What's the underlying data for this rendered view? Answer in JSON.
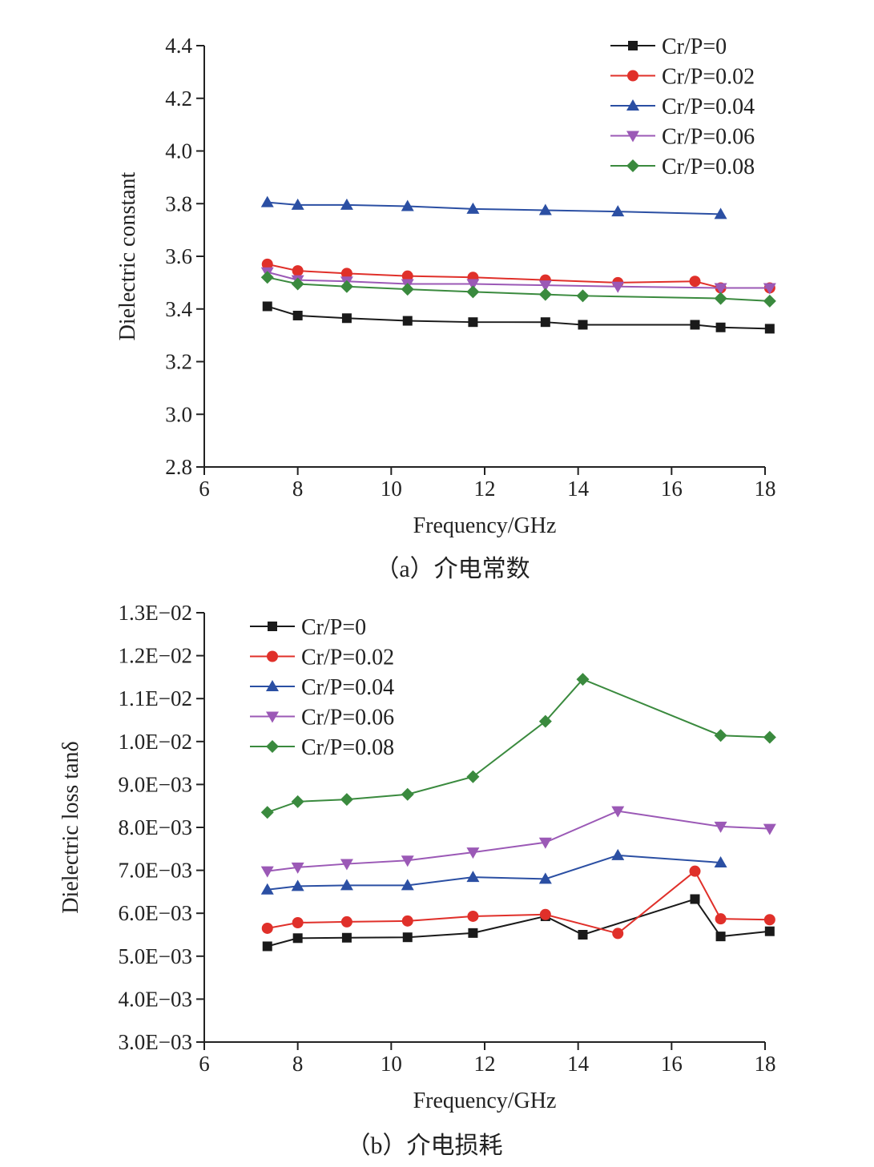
{
  "chart_data": [
    {
      "type": "line",
      "caption": "（a）介电常数",
      "xlabel": "Frequency/GHz",
      "ylabel": "Dielectric constant",
      "xlim": [
        6,
        18
      ],
      "ylim": [
        2.8,
        4.4
      ],
      "xticks": [
        6,
        8,
        10,
        12,
        14,
        16,
        18
      ],
      "yticks": [
        2.8,
        3.0,
        3.2,
        3.4,
        3.6,
        3.8,
        4.0,
        4.2,
        4.4
      ],
      "ytick_labels": [
        "2.8",
        "3.0",
        "3.2",
        "3.4",
        "3.6",
        "3.8",
        "4.0",
        "4.2",
        "4.4"
      ],
      "legend_position": "top-right",
      "grid": false,
      "series": [
        {
          "name": "Cr/P=0",
          "color": "#1a1a1a",
          "marker": "square",
          "x": [
            7.35,
            8.0,
            9.05,
            10.35,
            11.75,
            13.3,
            14.1,
            16.5,
            17.05,
            18.1
          ],
          "y": [
            3.41,
            3.375,
            3.365,
            3.355,
            3.35,
            3.35,
            3.34,
            3.34,
            3.33,
            3.325
          ]
        },
        {
          "name": "Cr/P=0.02",
          "color": "#e0302a",
          "marker": "circle",
          "x": [
            7.35,
            8.0,
            9.05,
            10.35,
            11.75,
            13.3,
            14.85,
            16.5,
            17.05,
            18.1
          ],
          "y": [
            3.57,
            3.545,
            3.535,
            3.525,
            3.52,
            3.51,
            3.5,
            3.505,
            3.48,
            3.48
          ]
        },
        {
          "name": "Cr/P=0.04",
          "color": "#2b4fa3",
          "marker": "triangle-up",
          "x": [
            7.35,
            8.0,
            9.05,
            10.35,
            11.75,
            13.3,
            14.85,
            17.05
          ],
          "y": [
            3.805,
            3.795,
            3.795,
            3.79,
            3.78,
            3.775,
            3.77,
            3.76
          ]
        },
        {
          "name": "Cr/P=0.06",
          "color": "#9b59b6",
          "marker": "triangle-down",
          "x": [
            7.35,
            8.0,
            9.05,
            10.35,
            11.75,
            13.3,
            14.85,
            17.05,
            18.1
          ],
          "y": [
            3.54,
            3.51,
            3.505,
            3.495,
            3.495,
            3.49,
            3.485,
            3.48,
            3.48
          ]
        },
        {
          "name": "Cr/P=0.08",
          "color": "#3a8a3e",
          "marker": "diamond",
          "x": [
            7.35,
            8.0,
            9.05,
            10.35,
            11.75,
            13.3,
            14.1,
            17.05,
            18.1
          ],
          "y": [
            3.52,
            3.495,
            3.485,
            3.475,
            3.465,
            3.455,
            3.45,
            3.44,
            3.43
          ]
        }
      ]
    },
    {
      "type": "line",
      "caption": "（b）介电损耗",
      "xlabel": "Frequency/GHz",
      "ylabel": "Dielectric loss tanδ",
      "xlim": [
        6,
        18
      ],
      "ylim": [
        0.003,
        0.013
      ],
      "xticks": [
        6,
        8,
        10,
        12,
        14,
        16,
        18
      ],
      "yticks": [
        0.003,
        0.004,
        0.005,
        0.006,
        0.007,
        0.008,
        0.009,
        0.01,
        0.011,
        0.012,
        0.013
      ],
      "ytick_labels": [
        "3.0E−03",
        "4.0E−03",
        "5.0E−03",
        "6.0E−03",
        "7.0E−03",
        "8.0E−03",
        "9.0E−03",
        "1.0E−02",
        "1.1E−02",
        "1.2E−02",
        "1.3E−02"
      ],
      "legend_position": "top-left",
      "grid": false,
      "series": [
        {
          "name": "Cr/P=0",
          "color": "#1a1a1a",
          "marker": "square",
          "x": [
            7.35,
            8.0,
            9.05,
            10.35,
            11.75,
            13.3,
            14.1,
            16.5,
            17.05,
            18.1
          ],
          "y": [
            0.00523,
            0.00542,
            0.00543,
            0.00544,
            0.00554,
            0.00593,
            0.0055,
            0.00633,
            0.00546,
            0.00558
          ]
        },
        {
          "name": "Cr/P=0.02",
          "color": "#e0302a",
          "marker": "circle",
          "x": [
            7.35,
            8.0,
            9.05,
            10.35,
            11.75,
            13.3,
            14.85,
            16.5,
            17.05,
            18.1
          ],
          "y": [
            0.00565,
            0.00578,
            0.0058,
            0.00582,
            0.00593,
            0.00597,
            0.00553,
            0.00698,
            0.00587,
            0.00585
          ]
        },
        {
          "name": "Cr/P=0.04",
          "color": "#2b4fa3",
          "marker": "triangle-up",
          "x": [
            7.35,
            8.0,
            9.05,
            10.35,
            11.75,
            13.3,
            14.85,
            17.05
          ],
          "y": [
            0.00655,
            0.00663,
            0.00665,
            0.00665,
            0.00684,
            0.0068,
            0.00735,
            0.00718
          ]
        },
        {
          "name": "Cr/P=0.06",
          "color": "#9b59b6",
          "marker": "triangle-down",
          "x": [
            7.35,
            8.0,
            9.05,
            10.35,
            11.75,
            13.3,
            14.85,
            17.05,
            18.1
          ],
          "y": [
            0.00698,
            0.00707,
            0.00715,
            0.00723,
            0.00742,
            0.00765,
            0.00838,
            0.00802,
            0.00797
          ]
        },
        {
          "name": "Cr/P=0.08",
          "color": "#3a8a3e",
          "marker": "diamond",
          "x": [
            7.35,
            8.0,
            9.05,
            10.35,
            11.75,
            13.3,
            14.1,
            17.05,
            18.1
          ],
          "y": [
            0.00835,
            0.0086,
            0.00865,
            0.00877,
            0.00918,
            0.01047,
            0.01145,
            0.01014,
            0.0101
          ]
        }
      ]
    }
  ]
}
